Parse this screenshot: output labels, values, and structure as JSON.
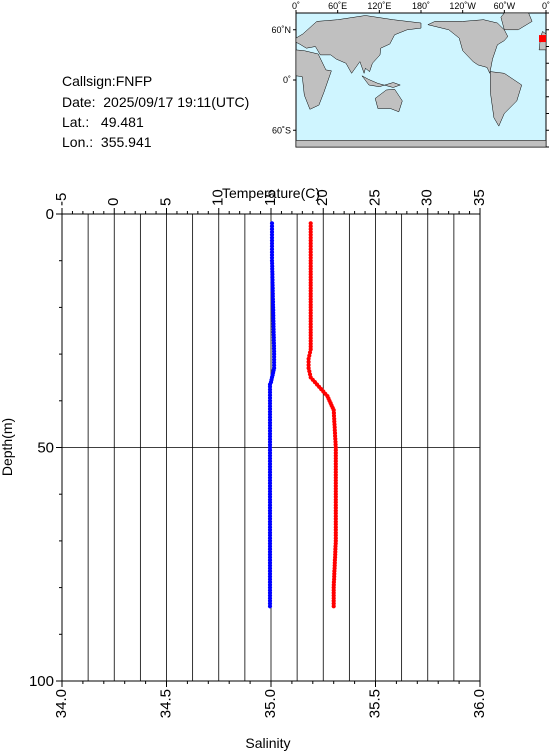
{
  "station": {
    "callsign_label": "Callsign:",
    "callsign": "FNFP",
    "date_label": "Date:",
    "date": "2025/09/17 19:11(UTC)",
    "lat_label": "Lat.:",
    "lat": "49.481",
    "lon_label": "Lon.:",
    "lon": "355.941"
  },
  "map": {
    "top_ticks": [
      "0˚",
      "60˚E",
      "120˚E",
      "180˚",
      "120˚W",
      "60˚W",
      "0˚"
    ],
    "left_ticks": [
      "60˚N",
      "0˚",
      "60˚S"
    ],
    "ocean_color": "#cff5ff",
    "land_color": "#c0c0c0",
    "marker_color": "#ff0000",
    "marker_lon": 355.941,
    "marker_lat": 49.481
  },
  "chart_data": {
    "type": "line",
    "ylabel": "Depth(m)",
    "ylim": [
      0,
      100
    ],
    "y_ticks": [
      0,
      50,
      100
    ],
    "y_inverted": true,
    "top_axis": {
      "label": "Temperature(C)",
      "range": [
        -5,
        35
      ],
      "ticks": [
        -5,
        0,
        5,
        10,
        15,
        20,
        25,
        30,
        35
      ]
    },
    "bottom_axis": {
      "label": "Salinity",
      "range": [
        34.0,
        36.0
      ],
      "ticks": [
        "34.0",
        "34.5",
        "35.0",
        "35.5",
        "36.0"
      ]
    },
    "grid": true,
    "series": [
      {
        "axis": "temperature",
        "color": "#0000ff",
        "depths": [
          2,
          10,
          20,
          30,
          33,
          34,
          35,
          36,
          36.5,
          37,
          40,
          50,
          60,
          70,
          80,
          84
        ],
        "values": [
          15.1,
          15.1,
          15.2,
          15.3,
          15.3,
          15.2,
          15.1,
          15.0,
          14.9,
          14.9,
          14.9,
          14.9,
          14.9,
          14.9,
          14.9,
          14.9
        ]
      },
      {
        "axis": "salinity",
        "color": "#ff0000",
        "depths": [
          2,
          10,
          20,
          29,
          31,
          33,
          35,
          36,
          37,
          38,
          39,
          40,
          41,
          42,
          50,
          60,
          70,
          80,
          84
        ],
        "values": [
          35.19,
          35.19,
          35.19,
          35.19,
          35.18,
          35.18,
          35.19,
          35.21,
          35.23,
          35.25,
          35.27,
          35.28,
          35.29,
          35.3,
          35.31,
          35.31,
          35.31,
          35.3,
          35.3
        ]
      }
    ]
  }
}
